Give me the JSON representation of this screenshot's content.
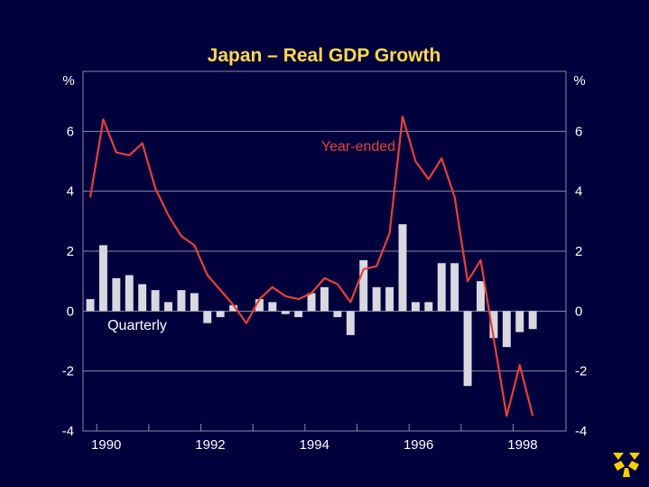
{
  "colors": {
    "background": "#00003c",
    "title": "#ffd84a",
    "year_ended": "#e8403a",
    "quarterly": "#d8d8e0",
    "grid": "#8a8aa8",
    "text": "#ffffff",
    "logo": "#ffd000"
  },
  "logo_icon": "rba-logo-icon",
  "chart_data": {
    "type": "bar+line",
    "title": "Japan – Real GDP Growth",
    "y_unit_left": "%",
    "y_unit_right": "%",
    "ylim": [
      -4,
      8
    ],
    "yticks": [
      -4,
      -2,
      0,
      2,
      4,
      6
    ],
    "ytick_labels": [
      "-4",
      "-2",
      "0",
      "2",
      "4",
      "6"
    ],
    "xlim": [
      1989.75,
      1998.75
    ],
    "xticks": [
      1990,
      1992,
      1994,
      1996,
      1998
    ],
    "xtick_labels": [
      "1990",
      "1992",
      "1994",
      "1996",
      "1998"
    ],
    "grid": true,
    "annotations": {
      "year_ended": "Year-ended",
      "quarterly": "Quarterly"
    },
    "series": [
      {
        "name": "Year-ended",
        "type": "line",
        "x": [
          1989.75,
          1990.0,
          1990.25,
          1990.5,
          1990.75,
          1991.0,
          1991.25,
          1991.5,
          1991.75,
          1992.0,
          1992.25,
          1992.5,
          1992.75,
          1993.0,
          1993.25,
          1993.5,
          1993.75,
          1994.0,
          1994.25,
          1994.5,
          1994.75,
          1995.0,
          1995.25,
          1995.5,
          1995.75,
          1996.0,
          1996.25,
          1996.5,
          1996.75,
          1997.0,
          1997.25,
          1997.5,
          1997.75,
          1998.0,
          1998.25
        ],
        "values": [
          3.8,
          6.4,
          5.3,
          5.2,
          5.6,
          4.1,
          3.2,
          2.5,
          2.2,
          1.2,
          0.7,
          0.2,
          -0.4,
          0.4,
          0.8,
          0.5,
          0.4,
          0.6,
          1.1,
          0.9,
          0.3,
          1.4,
          1.5,
          2.6,
          6.5,
          5.0,
          4.4,
          5.1,
          3.8,
          1.0,
          1.7,
          -0.9,
          -3.5,
          -1.8,
          -3.5
        ]
      },
      {
        "name": "Quarterly",
        "type": "bar",
        "x": [
          1989.75,
          1990.0,
          1990.25,
          1990.5,
          1990.75,
          1991.0,
          1991.25,
          1991.5,
          1991.75,
          1992.0,
          1992.25,
          1992.5,
          1992.75,
          1993.0,
          1993.25,
          1993.5,
          1993.75,
          1994.0,
          1994.25,
          1994.5,
          1994.75,
          1995.0,
          1995.25,
          1995.5,
          1995.75,
          1996.0,
          1996.25,
          1996.5,
          1996.75,
          1997.0,
          1997.25,
          1997.5,
          1997.75,
          1998.0,
          1998.25
        ],
        "values": [
          0.4,
          2.2,
          1.1,
          1.2,
          0.9,
          0.7,
          0.3,
          0.7,
          0.6,
          -0.4,
          -0.2,
          0.2,
          0.0,
          0.4,
          0.3,
          -0.1,
          -0.2,
          0.6,
          0.8,
          -0.2,
          -0.8,
          1.7,
          0.8,
          0.8,
          2.9,
          0.3,
          0.3,
          1.6,
          1.6,
          -2.5,
          1.0,
          -0.9,
          -1.2,
          -0.7,
          -0.6
        ]
      }
    ]
  }
}
